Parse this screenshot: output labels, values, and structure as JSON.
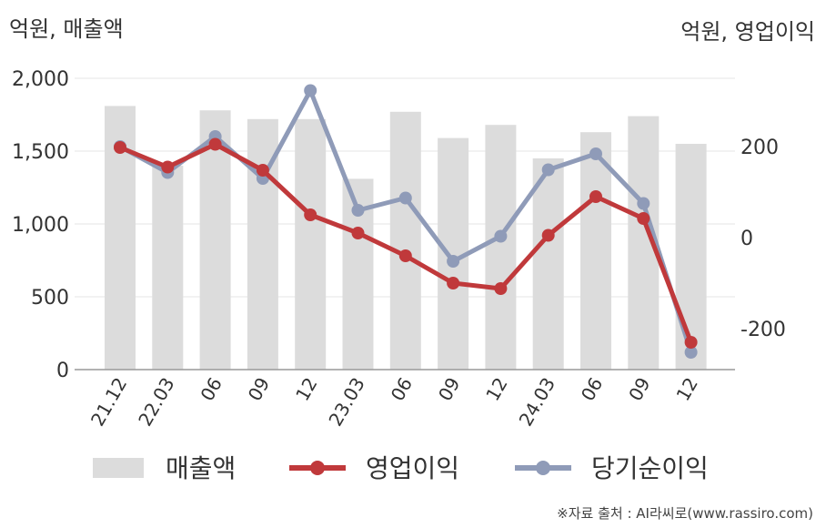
{
  "header": {
    "left_unit": "억원, 매출액",
    "right_unit": "억원, 영업이익"
  },
  "footer": {
    "source": "※자료 출처 : AI라씨로(www.rassiro.com)"
  },
  "colors": {
    "bar": "#dcdcdc",
    "operating_profit": "#c0393b",
    "net_income": "#8f9bb8",
    "axis": "#999999",
    "grid": "#e6e6e6"
  },
  "chart_data": {
    "type": "bar+line",
    "categories": [
      "21.12",
      "22.03",
      "06",
      "09",
      "12",
      "23.03",
      "06",
      "09",
      "12",
      "24.03",
      "06",
      "09",
      "12"
    ],
    "y_left": {
      "ylim": [
        0,
        2000
      ],
      "ticks": [
        "0",
        "500",
        "1,000",
        "1,500",
        "2,000"
      ],
      "tick_values": [
        0,
        500,
        1000,
        1500,
        2000
      ]
    },
    "y_right": {
      "ylim": [
        -290,
        350
      ],
      "ticks": [
        "-200",
        "0",
        "200"
      ],
      "tick_values": [
        -200,
        0,
        200
      ]
    },
    "grid": true,
    "legend_position": "bottom",
    "series": [
      {
        "name": "매출액",
        "type": "bar",
        "axis": "left",
        "values": [
          1810,
          1400,
          1780,
          1720,
          1720,
          1310,
          1770,
          1590,
          1680,
          1450,
          1630,
          1740,
          1550
        ]
      },
      {
        "name": "영업이익",
        "type": "line",
        "axis": "right",
        "values": [
          198,
          155,
          205,
          148,
          50,
          10,
          -40,
          -100,
          -112,
          5,
          90,
          42,
          -230
        ]
      },
      {
        "name": "당기순이익",
        "type": "line",
        "axis": "right",
        "values": [
          200,
          143,
          222,
          130,
          323,
          60,
          87,
          -52,
          3,
          149,
          184,
          75,
          -252
        ]
      }
    ]
  }
}
